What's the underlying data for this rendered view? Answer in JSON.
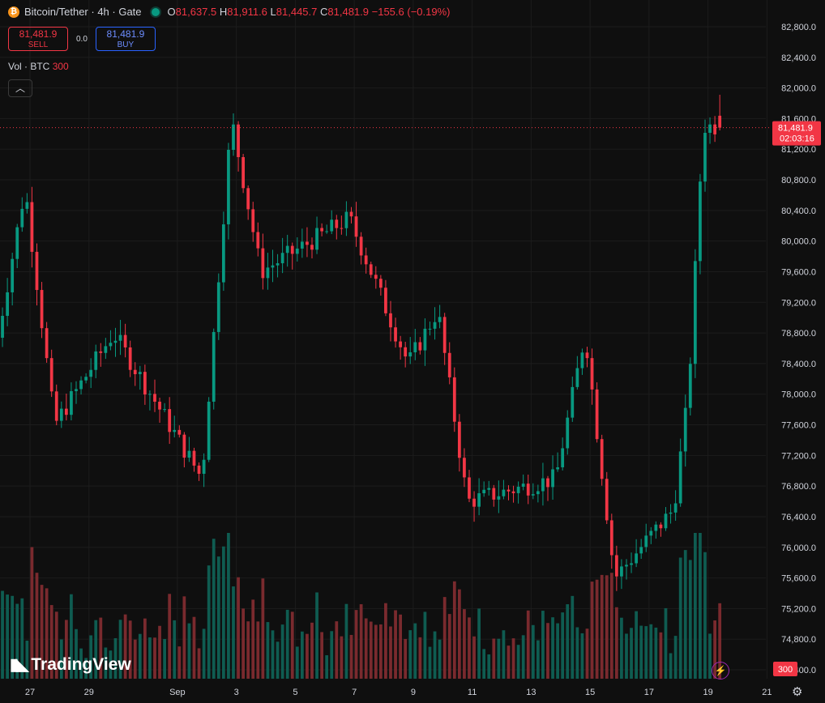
{
  "legend": {
    "symbol": "Bitcoin/Tether · 4h · Gate",
    "o_label": "O",
    "o": "81,637.5",
    "h_label": "H",
    "h": "81,911.6",
    "l_label": "L",
    "l": "81,445.7",
    "c_label": "C",
    "c": "81,481.9",
    "change": "−155.6 (−0.19%)"
  },
  "trade": {
    "sell_price": "81,481.9",
    "sell_label": "SELL",
    "spread": "0.0",
    "buy_price": "81,481.9",
    "buy_label": "BUY"
  },
  "volume": {
    "label": "Vol · BTC",
    "value": "300",
    "badge": "300"
  },
  "collapse_icon": "chevron-up-icon",
  "branding": {
    "logo": "TradingView"
  },
  "price_tag": {
    "price": "81,481.9",
    "countdown": "02:03:16"
  },
  "colors": {
    "up": "#089981",
    "down": "#f23645",
    "up_vol": "#0f5c51",
    "down_vol": "#7a2a2e",
    "background": "#0f0f0f"
  },
  "chart_data": {
    "type": "candlestick",
    "interval": "4h",
    "y_axis": {
      "ticks": [
        "82,800.0",
        "82,400.0",
        "82,000.0",
        "81,600.0",
        "81,200.0",
        "80,800.0",
        "80,400.0",
        "80,000.0",
        "79,600.0",
        "79,200.0",
        "78,800.0",
        "78,400.0",
        "78,000.0",
        "77,600.0",
        "77,200.0",
        "76,800.0",
        "76,400.0",
        "76,000.0",
        "75,600.0",
        "75,200.0",
        "74,800.0",
        "74,400.0"
      ],
      "ylim": [
        74400,
        82800
      ]
    },
    "x_axis": {
      "ticks": [
        "27",
        "29",
        "Sep",
        "3",
        "5",
        "7",
        "9",
        "11",
        "13",
        "15",
        "17",
        "19",
        "21"
      ]
    },
    "last_price": 81481.9,
    "key_points": [
      {
        "date": "Aug 26",
        "price": 78600
      },
      {
        "date": "Aug 27",
        "price": 80700
      },
      {
        "date": "Aug 28",
        "price": 77600
      },
      {
        "date": "Aug 30",
        "price": 78800
      },
      {
        "date": "Sep 2",
        "price": 76900
      },
      {
        "date": "Sep 3",
        "price": 81600
      },
      {
        "date": "Sep 4",
        "price": 79600
      },
      {
        "date": "Sep 7",
        "price": 80300
      },
      {
        "date": "Sep 9",
        "price": 78400
      },
      {
        "date": "Sep 10",
        "price": 79100
      },
      {
        "date": "Sep 11",
        "price": 76600
      },
      {
        "date": "Sep 14",
        "price": 76900
      },
      {
        "date": "Sep 15",
        "price": 78800
      },
      {
        "date": "Sep 16",
        "price": 75600
      },
      {
        "date": "Sep 18",
        "price": 76500
      },
      {
        "date": "Sep 18",
        "price": 78000
      },
      {
        "date": "Sep 19",
        "price": 81500
      }
    ]
  }
}
